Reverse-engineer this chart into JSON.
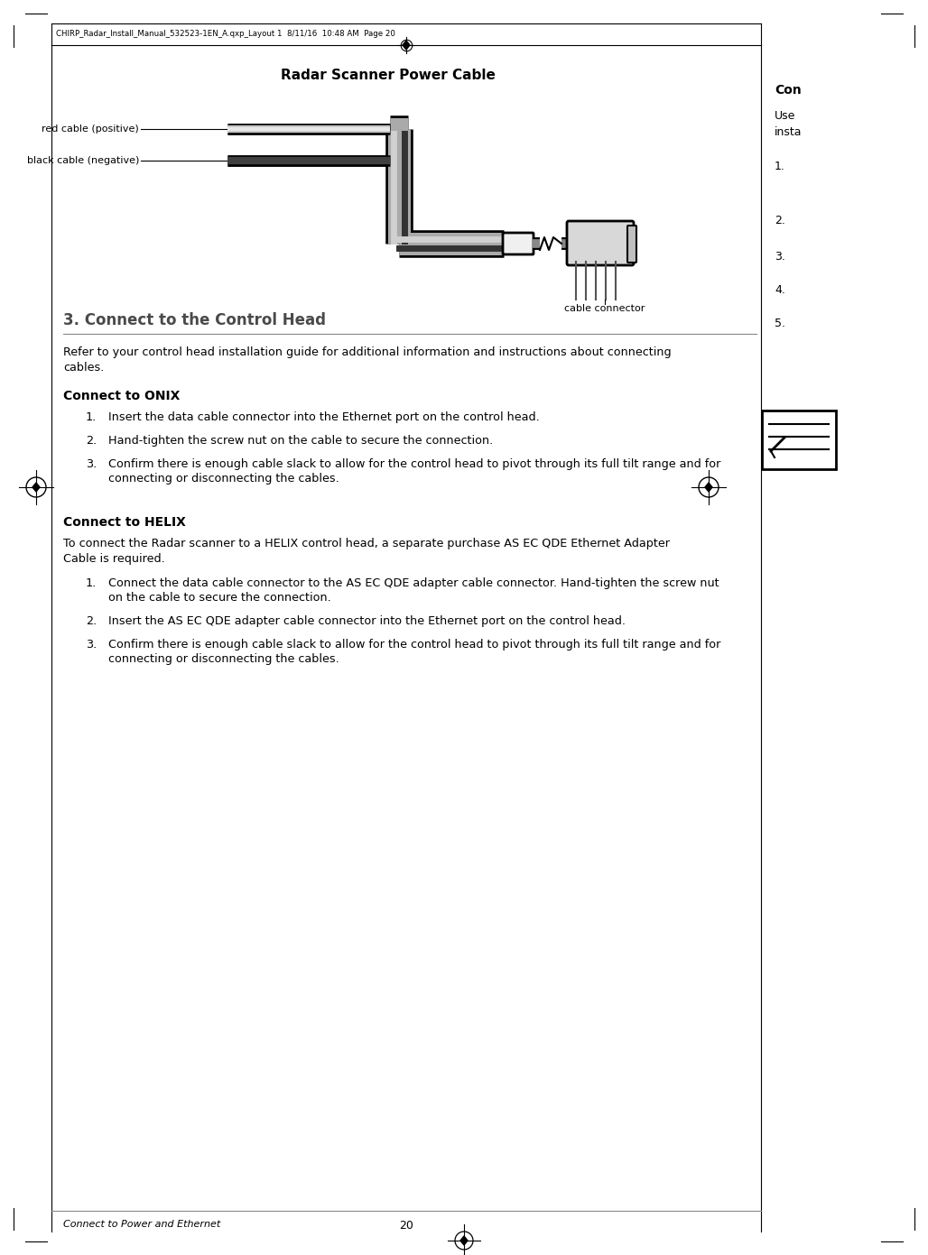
{
  "page_bg": "#ffffff",
  "header_text": "CHIRP_Radar_Install_Manual_532523-1EN_A.qxp_Layout 1  8/11/16  10:48 AM  Page 20",
  "diagram_title": "Radar Scanner Power Cable",
  "red_cable_label": "red cable (positive)",
  "black_cable_label": "black cable (negative)",
  "connector_label": "cable connector",
  "section_title": "3. Connect to the Control Head",
  "section_intro_1": "Refer to your control head installation guide for additional information and instructions about connecting",
  "section_intro_2": "cables.",
  "onix_heading": "Connect to ONIX",
  "onix_items": [
    "Insert the data cable connector into the Ethernet port on the control head.",
    "Hand-tighten the screw nut on the cable to secure the connection.",
    [
      "Confirm there is enough cable slack to allow for the control head to pivot through its full tilt range and for",
      "connecting or disconnecting the cables."
    ]
  ],
  "helix_heading": "Connect to HELIX",
  "helix_intro_1": "To connect the Radar scanner to a HELIX control head, a separate purchase AS EC QDE Ethernet Adapter",
  "helix_intro_2": "Cable is required.",
  "helix_items": [
    [
      "Connect the data cable connector to the AS EC QDE adapter cable connector. Hand-tighten the screw nut",
      "on the cable to secure the connection."
    ],
    "Insert the AS EC QDE adapter cable connector into the Ethernet port on the control head.",
    [
      "Confirm there is enough cable slack to allow for the control head to pivot through its full tilt range and for",
      "connecting or disconnecting the cables."
    ]
  ],
  "footer_left": "Connect to Power and Ethernet",
  "footer_center": "20",
  "right_col_heading": "Con",
  "right_col_use": "Use",
  "right_col_insta": "insta",
  "right_col_nums": [
    "1.",
    "2.",
    "3.",
    "4.",
    "5."
  ]
}
